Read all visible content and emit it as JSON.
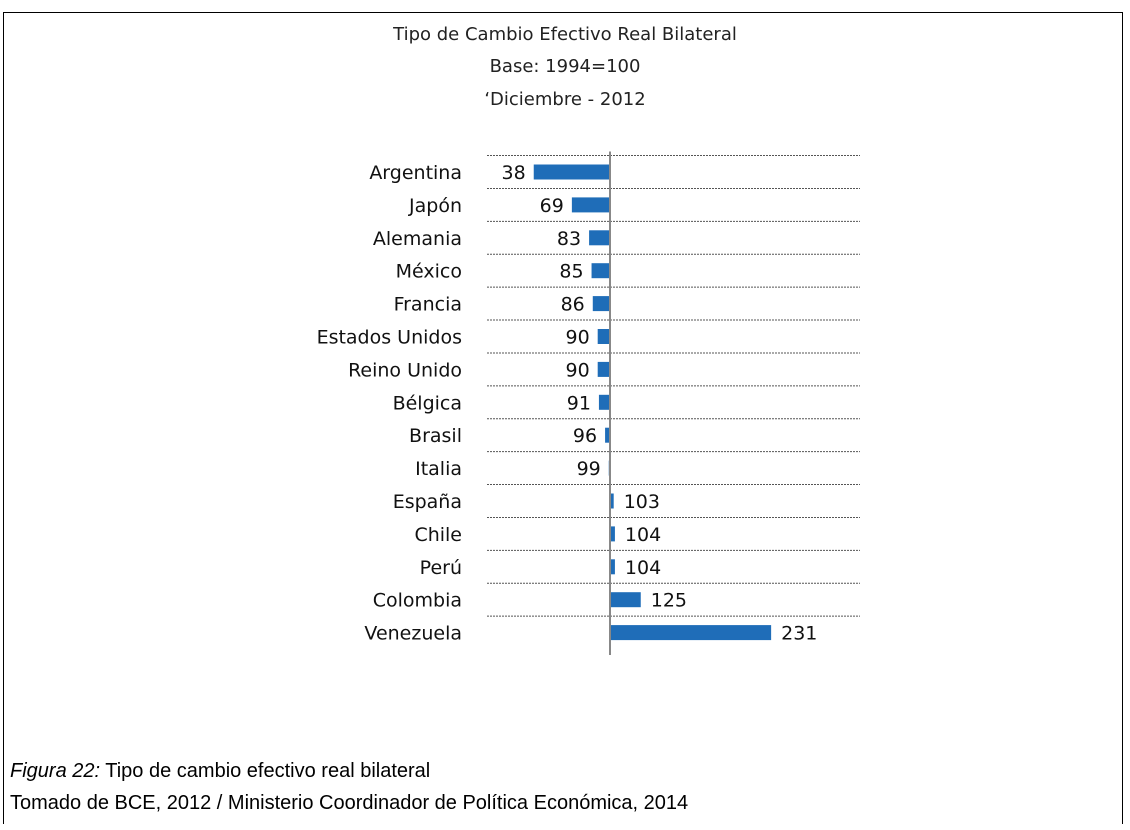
{
  "chart_data": {
    "type": "bar",
    "orientation": "horizontal",
    "title": "Tipo de Cambio Efectivo Real Bilateral",
    "subtitle_lines": [
      "Base: 1994=100",
      "‘Diciembre - 2012"
    ],
    "baseline": 100,
    "categories": [
      "Argentina",
      "Japón",
      "Alemania",
      "México",
      "Francia",
      "Estados Unidos",
      "Reino Unido",
      "Bélgica",
      "Brasil",
      "Italia",
      "España",
      "Chile",
      "Perú",
      "Colombia",
      "Venezuela"
    ],
    "values": [
      38,
      69,
      83,
      85,
      86,
      90,
      90,
      91,
      96,
      99,
      103,
      104,
      104,
      125,
      231
    ],
    "bar_color": "#1f6db8",
    "grid": "dashed horizontal separators"
  },
  "caption": {
    "figure_label": "Figura 22:",
    "figure_text": " Tipo de cambio efectivo real bilateral",
    "source": "Tomado de BCE, 2012 / Ministerio Coordinador de Política Económica, 2014"
  }
}
